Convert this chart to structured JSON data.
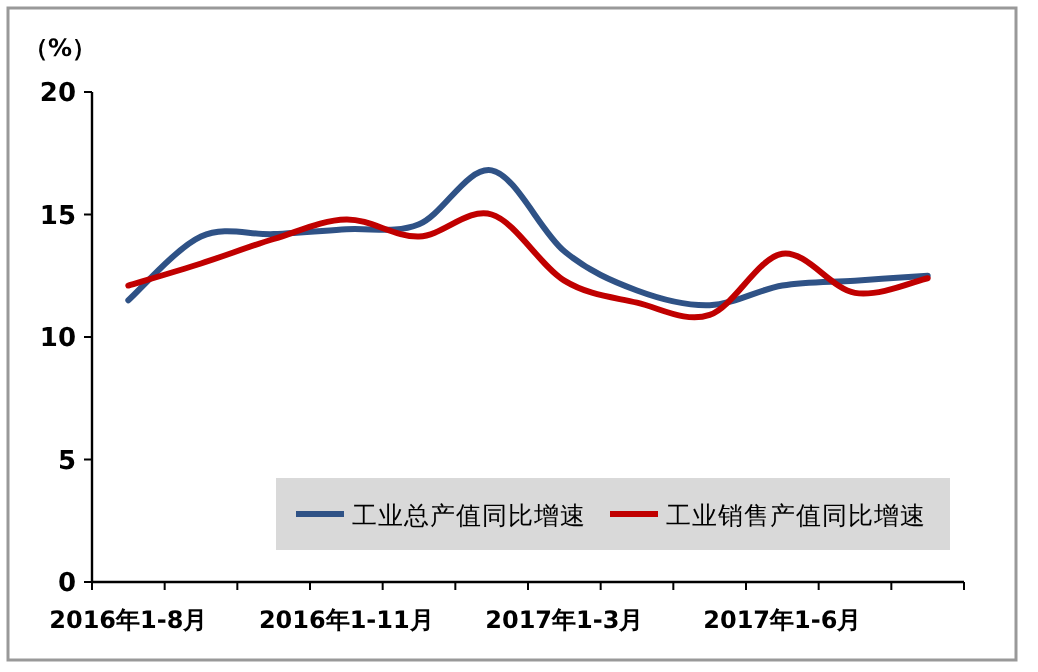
{
  "chart_data": {
    "type": "line",
    "ylabel": "（%）",
    "categories": [
      "2016年1-8月",
      null,
      null,
      "2016年1-11月",
      null,
      null,
      "2017年1-3月",
      null,
      null,
      "2017年1-6月",
      null,
      null
    ],
    "series": [
      {
        "name": "工业总产值同比增速",
        "color": "#2f5286",
        "values": [
          11.5,
          14.1,
          14.2,
          14.4,
          14.6,
          16.8,
          13.5,
          11.9,
          11.3,
          12.1,
          12.3,
          12.5
        ]
      },
      {
        "name": "工业销售产值同比增速",
        "color": "#c00000",
        "values": [
          12.1,
          13.0,
          14.0,
          14.8,
          14.1,
          15.0,
          12.3,
          11.4,
          10.9,
          13.4,
          11.8,
          12.4
        ]
      }
    ],
    "ylim": [
      0,
      20
    ],
    "yticks": [
      0,
      5,
      10,
      15,
      20
    ],
    "grid": false,
    "legend": "bottom",
    "marker": "none",
    "line_style": "solid"
  }
}
